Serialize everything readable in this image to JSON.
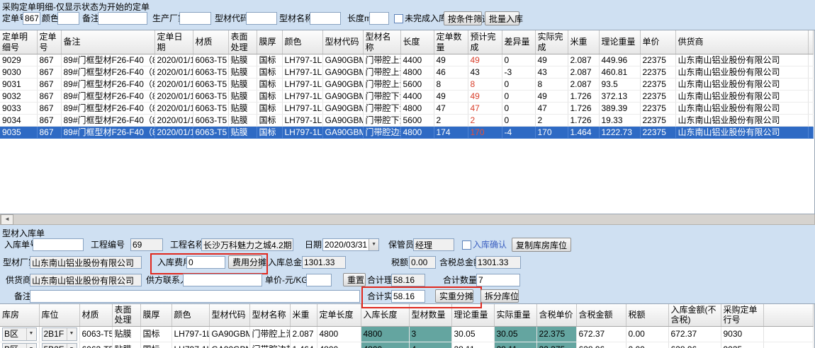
{
  "colors": {
    "background": "#cfe0f2",
    "selected_row": "#2e6ac4",
    "red_text": "#d8402c",
    "teal_cell": "#64a5a0",
    "highlight_border": "#e0281e",
    "checkbox_label_blue": "#3b5fc0"
  },
  "icons": {
    "left_arrow": "◄",
    "dropdown_arrow": "▼",
    "combo_arrow": "▼"
  },
  "header": {
    "title": "采购定单明细-仅显示状态为开始的定单"
  },
  "filter": {
    "order_no_label": "定单号",
    "order_no_value": "867",
    "color_label": "颜色",
    "color_value": "",
    "remark_label": "备注",
    "remark_value": "",
    "manufacturer_label": "生产厂家",
    "manufacturer_value": "",
    "profile_code_label": "型材代码",
    "profile_code_value": "",
    "profile_name_label": "型材名称",
    "profile_name_value": "",
    "length_label": "长度mm",
    "length_value": "",
    "unfinished_checkbox_label": "未完成入库",
    "filter_button": "按条件筛选",
    "batch_inbound_button": "批量入库"
  },
  "order_table": {
    "columns": [
      "定单明细号",
      "定单号",
      "备注",
      "定单日期",
      "材质",
      "表面处理",
      "膜厚",
      "颜色",
      "型材代码",
      "型材名称",
      "长度",
      "定单数量",
      "预计完成",
      "差异量",
      "实际完成",
      "米重",
      "理论重量",
      "单价",
      "供货商"
    ],
    "rows": [
      {
        "selected": false,
        "expected_red": true,
        "cells": [
          "9029",
          "867",
          "89#门框型材F26-F40（866+867）",
          "2020/01/13",
          "6063-T5",
          "贴膜",
          "国标",
          "LH797-1LL0",
          "GA90GBM03",
          "门带腔上滑",
          "4400",
          "49",
          "49",
          "0",
          "49",
          "2.087",
          "449.96",
          "22375",
          "山东南山铝业股份有限公司"
        ]
      },
      {
        "selected": false,
        "expected_red": false,
        "cells": [
          "9030",
          "867",
          "89#门框型材F26-F40（866+867）",
          "2020/01/13",
          "6063-T5",
          "贴膜",
          "国标",
          "LH797-1LL0",
          "GA90GBM03",
          "门带腔上滑",
          "4800",
          "46",
          "43",
          "-3",
          "43",
          "2.087",
          "460.81",
          "22375",
          "山东南山铝业股份有限公司"
        ]
      },
      {
        "selected": false,
        "expected_red": true,
        "cells": [
          "9031",
          "867",
          "89#门框型材F26-F40（866+867）",
          "2020/01/13",
          "6063-T5",
          "贴膜",
          "国标",
          "LH797-1LL0",
          "GA90GBM03",
          "门带腔上滑",
          "5600",
          "8",
          "8",
          "0",
          "8",
          "2.087",
          "93.5",
          "22375",
          "山东南山铝业股份有限公司"
        ]
      },
      {
        "selected": false,
        "expected_red": true,
        "cells": [
          "9032",
          "867",
          "89#门框型材F26-F40（866+867）",
          "2020/01/13",
          "6063-T5",
          "贴膜",
          "国标",
          "LH797-1LL0",
          "GA90GBM04",
          "门带腔下滑",
          "4400",
          "49",
          "49",
          "0",
          "49",
          "1.726",
          "372.13",
          "22375",
          "山东南山铝业股份有限公司"
        ]
      },
      {
        "selected": false,
        "expected_red": true,
        "cells": [
          "9033",
          "867",
          "89#门框型材F26-F40（866+867）",
          "2020/01/13",
          "6063-T5",
          "贴膜",
          "国标",
          "LH797-1LL0",
          "GA90GBM04",
          "门带腔下滑",
          "4800",
          "47",
          "47",
          "0",
          "47",
          "1.726",
          "389.39",
          "22375",
          "山东南山铝业股份有限公司"
        ]
      },
      {
        "selected": false,
        "expected_red": true,
        "cells": [
          "9034",
          "867",
          "89#门框型材F26-F40（866+867）",
          "2020/01/13",
          "6063-T5",
          "贴膜",
          "国标",
          "LH797-1LL0",
          "GA90GBM04",
          "门带腔下滑",
          "5600",
          "2",
          "2",
          "0",
          "2",
          "1.726",
          "19.33",
          "22375",
          "山东南山铝业股份有限公司"
        ]
      },
      {
        "selected": true,
        "expected_red": true,
        "cells": [
          "9035",
          "867",
          "89#门框型材F26-F40（866+867）",
          "2020/01/13",
          "6063-T5",
          "贴膜",
          "国标",
          "LH797-1LL0",
          "GA90GBM05",
          "门带腔边封",
          "4800",
          "174",
          "170",
          "-4",
          "170",
          "1.464",
          "1222.73",
          "22375",
          "山东南山铝业股份有限公司"
        ]
      }
    ]
  },
  "inbound_form": {
    "section_title": "型材入库单",
    "inbound_no_label": "入库单号",
    "inbound_no_value": "",
    "project_no_label": "工程编号",
    "project_no_value": "69",
    "project_name_label": "工程名称",
    "project_name_value": "长沙万科魅力之城4.2期",
    "date_label": "日期",
    "date_value": "2020/03/31",
    "keeper_label": "保管员",
    "keeper_value": "经理",
    "confirm_checkbox_label": "入库确认",
    "copy_warehouse_button": "复制库房库位",
    "factory_label": "型材厂家",
    "factory_value": "山东南山铝业股份有限公司",
    "fee_label": "入库费用",
    "fee_value": "0",
    "fee_share_button": "费用分摊",
    "total_amount_label": "入库总金额",
    "total_amount_value": "1301.33",
    "tax_label": "税额",
    "tax_value": "0.00",
    "tax_total_label": "含税总金额",
    "tax_total_value": "1301.33",
    "supplier_label": "供货商",
    "supplier_value": "山东南山铝业股份有限公司",
    "contact_label": "供方联系人",
    "contact_value": "",
    "unit_price_label": "单价-元/KG",
    "unit_price_value": "",
    "reset_button": "重置",
    "theo_weight_label": "合计理重",
    "theo_weight_value": "58.16",
    "total_qty_label": "合计数量",
    "total_qty_value": "7",
    "remark_label": "备注",
    "remark_value": "",
    "actual_weight_label": "合计实重",
    "actual_weight_value": "58.16",
    "actual_share_button": "实重分摊",
    "split_location_button": "拆分库位"
  },
  "inbound_table": {
    "columns": [
      "库房",
      "库位",
      "材质",
      "表面处理",
      "膜厚",
      "颜色",
      "型材代码",
      "型材名称",
      "米重",
      "定单长度",
      "入库长度",
      "型材数量",
      "理论重量",
      "实际重量",
      "含税单价",
      "含税金额",
      "税额",
      "入库金额(不含税)",
      "采购定单行号"
    ],
    "rows": [
      {
        "cells": [
          "B区",
          "2B1F",
          "6063-T5",
          "贴膜",
          "国标",
          "LH797-1LL0",
          "GA90GBM03",
          "门带腔上滑",
          "2.087",
          "4800",
          "4800",
          "3",
          "30.05",
          "30.05",
          "22.375",
          "672.37",
          "0.00",
          "672.37",
          "9030"
        ]
      },
      {
        "cells": [
          "B区",
          "5B2F",
          "6063-T5",
          "贴膜",
          "国标",
          "LH797-1LL0",
          "GA90GBM05",
          "门带腔边封",
          "1.464",
          "4800",
          "4800",
          "4",
          "28.11",
          "28.11",
          "22.375",
          "628.96",
          "0.00",
          "628.96",
          "9035"
        ]
      }
    ]
  }
}
